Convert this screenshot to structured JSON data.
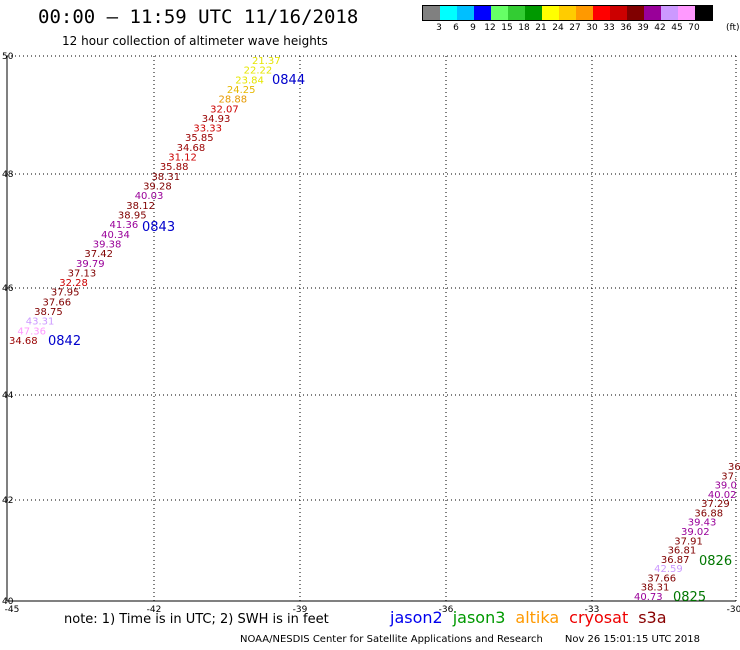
{
  "header": {
    "title": "00:00 – 11:59 UTC 11/16/2018",
    "subtitle": "12 hour collection of altimeter wave heights"
  },
  "legend": {
    "unit": "(ft)",
    "colors": [
      "#808080",
      "#00ffff",
      "#00bfff",
      "#0000ff",
      "#66ff66",
      "#33cc33",
      "#009900",
      "#ffff00",
      "#ffcc00",
      "#ff9900",
      "#ff0000",
      "#cc0000",
      "#800000",
      "#990099",
      "#cc99ff",
      "#ff99ff",
      "#000000"
    ],
    "labels": [
      "3",
      "6",
      "9",
      "12",
      "15",
      "18",
      "21",
      "24",
      "27",
      "30",
      "33",
      "36",
      "39",
      "42",
      "45",
      "70"
    ]
  },
  "map": {
    "lon_labels": [
      "-45",
      "-42",
      "-39",
      "-36",
      "-33",
      "-30"
    ],
    "lat_labels": [
      "50",
      "48",
      "46",
      "44",
      "42",
      "40"
    ],
    "passes": [
      {
        "label": "0844",
        "color": "#0000cc"
      },
      {
        "label": "0843",
        "color": "#0000cc"
      },
      {
        "label": "0842",
        "color": "#0000cc"
      },
      {
        "label": "0826",
        "color": "#007700"
      },
      {
        "label": "0825",
        "color": "#007700"
      }
    ],
    "track_a": [
      {
        "v": "21.37",
        "c": "#e6e600"
      },
      {
        "v": "22.22",
        "c": "#e6e600"
      },
      {
        "v": "23.84",
        "c": "#e6e600"
      },
      {
        "v": "24.25",
        "c": "#e6b800"
      },
      {
        "v": "28.88",
        "c": "#e69900"
      },
      {
        "v": "32.07",
        "c": "#cc0000"
      },
      {
        "v": "34.93",
        "c": "#990000"
      },
      {
        "v": "33.33",
        "c": "#cc0000"
      },
      {
        "v": "35.85",
        "c": "#990000"
      },
      {
        "v": "34.68",
        "c": "#990000"
      },
      {
        "v": "31.12",
        "c": "#cc0000"
      },
      {
        "v": "35.88",
        "c": "#990000"
      },
      {
        "v": "38.31",
        "c": "#800000"
      },
      {
        "v": "39.28",
        "c": "#800000"
      },
      {
        "v": "40.03",
        "c": "#990099"
      },
      {
        "v": "38.12",
        "c": "#800000"
      },
      {
        "v": "38.95",
        "c": "#800000"
      },
      {
        "v": "41.36",
        "c": "#990099"
      },
      {
        "v": "40.34",
        "c": "#990099"
      },
      {
        "v": "39.38",
        "c": "#990099"
      },
      {
        "v": "37.42",
        "c": "#800000"
      },
      {
        "v": "39.79",
        "c": "#990099"
      },
      {
        "v": "37.13",
        "c": "#800000"
      },
      {
        "v": "32.28",
        "c": "#cc0000"
      },
      {
        "v": "37.95",
        "c": "#800000"
      },
      {
        "v": "37.66",
        "c": "#800000"
      },
      {
        "v": "38.75",
        "c": "#800000"
      },
      {
        "v": "43.31",
        "c": "#cc99ff"
      },
      {
        "v": "47.36",
        "c": "#ff99ff"
      },
      {
        "v": "34.68",
        "c": "#990000"
      }
    ],
    "track_b": [
      {
        "v": "36.",
        "c": "#800000"
      },
      {
        "v": "37.",
        "c": "#800000"
      },
      {
        "v": "39.0",
        "c": "#990099"
      },
      {
        "v": "40.02",
        "c": "#990099"
      },
      {
        "v": "37.29",
        "c": "#800000"
      },
      {
        "v": "36.88",
        "c": "#800000"
      },
      {
        "v": "39.43",
        "c": "#990099"
      },
      {
        "v": "39.02",
        "c": "#990099"
      },
      {
        "v": "37.91",
        "c": "#800000"
      },
      {
        "v": "36.81",
        "c": "#800000"
      },
      {
        "v": "36.87",
        "c": "#800000"
      },
      {
        "v": "42.59",
        "c": "#cc99ff"
      },
      {
        "v": "37.66",
        "c": "#800000"
      },
      {
        "v": "38.31",
        "c": "#800000"
      },
      {
        "v": "40.73",
        "c": "#990099"
      }
    ]
  },
  "note": "note:  1) Time is in UTC;  2) SWH is in feet",
  "satellites": [
    {
      "name": "jason2",
      "color": "#0000ee"
    },
    {
      "name": "jason3",
      "color": "#009900"
    },
    {
      "name": "altika",
      "color": "#ff9900"
    },
    {
      "name": "cryosat",
      "color": "#ee0000"
    },
    {
      "name": "s3a",
      "color": "#880000"
    }
  ],
  "footer": {
    "credit": "NOAA/NESDIS Center for Satellite Applications and Research",
    "generated": "Nov 26 15:01:15 UTC 2018"
  }
}
